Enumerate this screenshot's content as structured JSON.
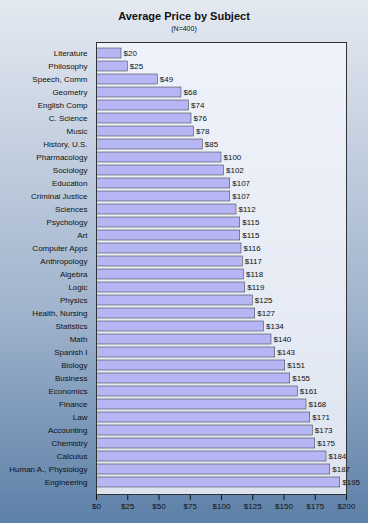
{
  "chart_data": {
    "type": "bar",
    "title": "Average Price by Subject",
    "subtitle": "(N=400)",
    "orientation": "horizontal",
    "categories": [
      "Literature",
      "Philosophy",
      "Speech, Comm",
      "Geometry",
      "English Comp",
      "C. Science",
      "Music",
      "History, U.S.",
      "Pharmacology",
      "Sociology",
      "Education",
      "Criminal Justice",
      "Sciences",
      "Psychology",
      "Art",
      "Computer Apps",
      "Anthropology",
      "Algebra",
      "Logic",
      "Physics",
      "Health, Nursing",
      "Statistics",
      "Math",
      "Spanish I",
      "Biology",
      "Business",
      "Economics",
      "Finance",
      "Law",
      "Accounting",
      "Chemistry",
      "Calculus",
      "Human A., Physiology",
      "Engineering"
    ],
    "values": [
      20,
      25,
      49,
      68,
      74,
      76,
      78,
      85,
      100,
      102,
      107,
      107,
      112,
      115,
      115,
      116,
      117,
      118,
      119,
      125,
      127,
      134,
      140,
      143,
      151,
      155,
      161,
      168,
      171,
      173,
      175,
      184,
      187,
      195
    ],
    "value_labels": [
      "$20",
      "$25",
      "$49",
      "$68",
      "$74",
      "$76",
      "$78",
      "$85",
      "$100",
      "$102",
      "$107",
      "$107",
      "$112",
      "$115",
      "$115",
      "$116",
      "$117",
      "$118",
      "$119",
      "$125",
      "$127",
      "$134",
      "$140",
      "$143",
      "$151",
      "$155",
      "$161",
      "$168",
      "$171",
      "$173",
      "$175",
      "$184",
      "$187",
      "$195"
    ],
    "data_labels": true,
    "color": "#b6b6f4",
    "xlim": [
      0,
      200
    ],
    "xticks": [
      {
        "value": 0,
        "label": "$0"
      },
      {
        "value": 25,
        "label": "$25"
      },
      {
        "value": 50,
        "label": "$50"
      },
      {
        "value": 75,
        "label": "$75"
      },
      {
        "value": 100,
        "label": "$100"
      },
      {
        "value": 125,
        "label": "$125"
      },
      {
        "value": 150,
        "label": "$150"
      },
      {
        "value": 175,
        "label": "$175"
      },
      {
        "value": 200,
        "label": "$200"
      }
    ],
    "grid": false
  }
}
